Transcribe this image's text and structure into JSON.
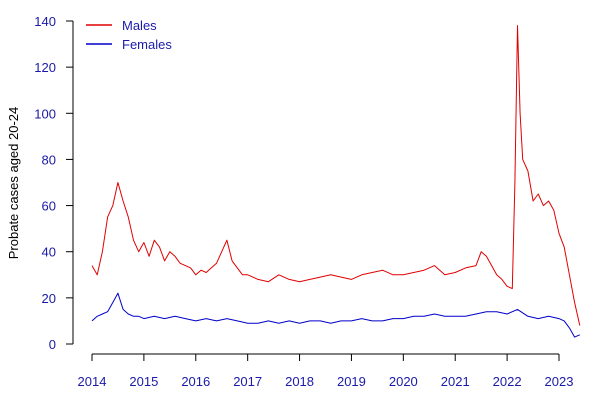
{
  "chart_data": {
    "type": "line",
    "title": "",
    "xlabel": "",
    "ylabel": "Probate cases aged 20-24",
    "xlim": [
      2014,
      2023.55
    ],
    "ylim": [
      0,
      140
    ],
    "x_ticks": [
      2014,
      2015,
      2016,
      2017,
      2018,
      2019,
      2020,
      2021,
      2022,
      2023
    ],
    "y_ticks": [
      0,
      20,
      40,
      60,
      80,
      100,
      120,
      140
    ],
    "grid": false,
    "legend_position": "top-left",
    "series": [
      {
        "name": "Males",
        "color": "#e00000",
        "points": [
          [
            2014.0,
            34
          ],
          [
            2014.1,
            30
          ],
          [
            2014.2,
            40
          ],
          [
            2014.3,
            55
          ],
          [
            2014.4,
            60
          ],
          [
            2014.5,
            70
          ],
          [
            2014.6,
            62
          ],
          [
            2014.7,
            55
          ],
          [
            2014.8,
            45
          ],
          [
            2014.9,
            40
          ],
          [
            2015.0,
            44
          ],
          [
            2015.1,
            38
          ],
          [
            2015.2,
            45
          ],
          [
            2015.3,
            42
          ],
          [
            2015.4,
            36
          ],
          [
            2015.5,
            40
          ],
          [
            2015.6,
            38
          ],
          [
            2015.7,
            35
          ],
          [
            2015.8,
            34
          ],
          [
            2015.9,
            33
          ],
          [
            2016.0,
            30
          ],
          [
            2016.1,
            32
          ],
          [
            2016.2,
            31
          ],
          [
            2016.3,
            33
          ],
          [
            2016.4,
            35
          ],
          [
            2016.5,
            40
          ],
          [
            2016.6,
            45
          ],
          [
            2016.7,
            36
          ],
          [
            2016.8,
            33
          ],
          [
            2016.9,
            30
          ],
          [
            2017.0,
            30
          ],
          [
            2017.2,
            28
          ],
          [
            2017.4,
            27
          ],
          [
            2017.6,
            30
          ],
          [
            2017.8,
            28
          ],
          [
            2018.0,
            27
          ],
          [
            2018.2,
            28
          ],
          [
            2018.4,
            29
          ],
          [
            2018.6,
            30
          ],
          [
            2018.8,
            29
          ],
          [
            2019.0,
            28
          ],
          [
            2019.2,
            30
          ],
          [
            2019.4,
            31
          ],
          [
            2019.6,
            32
          ],
          [
            2019.8,
            30
          ],
          [
            2020.0,
            30
          ],
          [
            2020.2,
            31
          ],
          [
            2020.4,
            32
          ],
          [
            2020.6,
            34
          ],
          [
            2020.8,
            30
          ],
          [
            2021.0,
            31
          ],
          [
            2021.2,
            33
          ],
          [
            2021.4,
            34
          ],
          [
            2021.5,
            40
          ],
          [
            2021.6,
            38
          ],
          [
            2021.8,
            30
          ],
          [
            2021.9,
            28
          ],
          [
            2022.0,
            25
          ],
          [
            2022.1,
            24
          ],
          [
            2022.15,
            70
          ],
          [
            2022.2,
            138
          ],
          [
            2022.25,
            100
          ],
          [
            2022.3,
            80
          ],
          [
            2022.4,
            75
          ],
          [
            2022.5,
            62
          ],
          [
            2022.6,
            65
          ],
          [
            2022.7,
            60
          ],
          [
            2022.8,
            62
          ],
          [
            2022.9,
            58
          ],
          [
            2023.0,
            48
          ],
          [
            2023.1,
            42
          ],
          [
            2023.2,
            30
          ],
          [
            2023.3,
            18
          ],
          [
            2023.4,
            8
          ]
        ]
      },
      {
        "name": "Females",
        "color": "#0000c8",
        "points": [
          [
            2014.0,
            10
          ],
          [
            2014.1,
            12
          ],
          [
            2014.2,
            13
          ],
          [
            2014.3,
            14
          ],
          [
            2014.4,
            18
          ],
          [
            2014.5,
            22
          ],
          [
            2014.6,
            15
          ],
          [
            2014.7,
            13
          ],
          [
            2014.8,
            12
          ],
          [
            2014.9,
            12
          ],
          [
            2015.0,
            11
          ],
          [
            2015.2,
            12
          ],
          [
            2015.4,
            11
          ],
          [
            2015.6,
            12
          ],
          [
            2015.8,
            11
          ],
          [
            2016.0,
            10
          ],
          [
            2016.2,
            11
          ],
          [
            2016.4,
            10
          ],
          [
            2016.6,
            11
          ],
          [
            2016.8,
            10
          ],
          [
            2017.0,
            9
          ],
          [
            2017.2,
            9
          ],
          [
            2017.4,
            10
          ],
          [
            2017.6,
            9
          ],
          [
            2017.8,
            10
          ],
          [
            2018.0,
            9
          ],
          [
            2018.2,
            10
          ],
          [
            2018.4,
            10
          ],
          [
            2018.6,
            9
          ],
          [
            2018.8,
            10
          ],
          [
            2019.0,
            10
          ],
          [
            2019.2,
            11
          ],
          [
            2019.4,
            10
          ],
          [
            2019.6,
            10
          ],
          [
            2019.8,
            11
          ],
          [
            2020.0,
            11
          ],
          [
            2020.2,
            12
          ],
          [
            2020.4,
            12
          ],
          [
            2020.6,
            13
          ],
          [
            2020.8,
            12
          ],
          [
            2021.0,
            12
          ],
          [
            2021.2,
            12
          ],
          [
            2021.4,
            13
          ],
          [
            2021.6,
            14
          ],
          [
            2021.8,
            14
          ],
          [
            2022.0,
            13
          ],
          [
            2022.2,
            15
          ],
          [
            2022.4,
            12
          ],
          [
            2022.6,
            11
          ],
          [
            2022.8,
            12
          ],
          [
            2023.0,
            11
          ],
          [
            2023.1,
            10
          ],
          [
            2023.2,
            7
          ],
          [
            2023.3,
            3
          ],
          [
            2023.4,
            4
          ]
        ]
      }
    ]
  }
}
